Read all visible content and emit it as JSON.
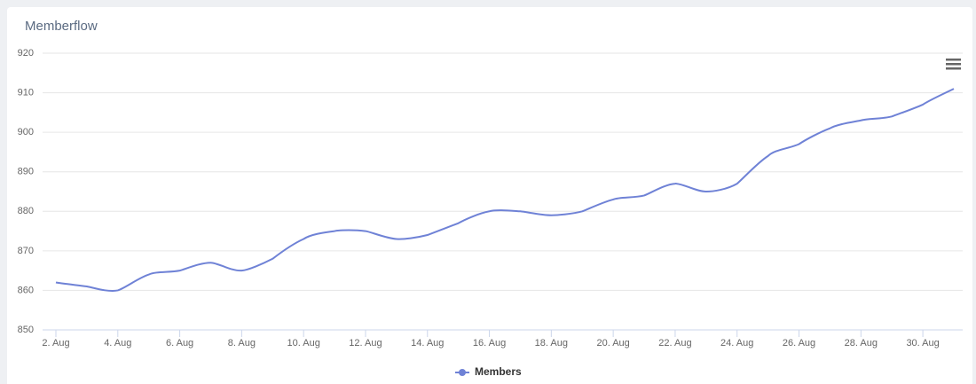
{
  "chart_data": {
    "type": "line",
    "title": "Memberflow",
    "categories": [
      "2. Aug",
      null,
      "4. Aug",
      null,
      "6. Aug",
      null,
      "8. Aug",
      null,
      "10. Aug",
      null,
      "12. Aug",
      null,
      "14. Aug",
      null,
      "16. Aug",
      null,
      "18. Aug",
      null,
      "20. Aug",
      null,
      "22. Aug",
      null,
      "24. Aug",
      null,
      "26. Aug",
      null,
      "28. Aug",
      null,
      "30. Aug",
      null
    ],
    "series": [
      {
        "name": "Members",
        "color": "#6f82d6",
        "values": [
          862,
          861,
          860,
          864,
          865,
          867,
          865,
          868,
          873,
          875,
          875,
          873,
          874,
          877,
          880,
          880,
          879,
          880,
          883,
          884,
          887,
          885,
          887,
          894,
          897,
          901,
          903,
          904,
          907,
          911
        ]
      }
    ],
    "ylim": [
      850,
      920
    ],
    "yticks": [
      850,
      860,
      870,
      880,
      890,
      900,
      910,
      920
    ],
    "grid": true
  }
}
